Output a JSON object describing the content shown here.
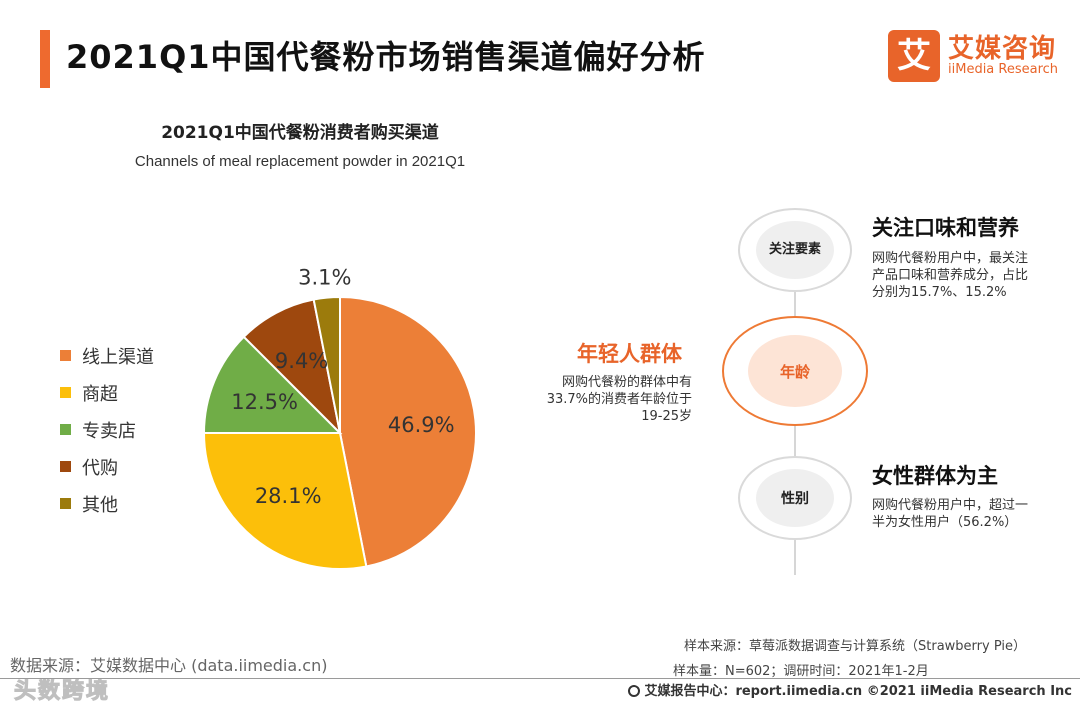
{
  "header": {
    "title": "2021Q1中国代餐粉市场销售渠道偏好分析",
    "logo_mark": "艾",
    "logo_cn": "艾媒咨询",
    "logo_en": "iiMedia Research",
    "accent_color": "#ee6a2f"
  },
  "chart_data": {
    "type": "pie",
    "title": "2021Q1中国代餐粉消费者购买渠道",
    "subtitle": "Channels of meal replacement powder in 2021Q1",
    "categories": [
      "线上渠道",
      "商超",
      "专卖店",
      "代购",
      "其他"
    ],
    "values": [
      46.9,
      28.1,
      12.5,
      9.4,
      3.1
    ],
    "labels": [
      "46.9%",
      "28.1%",
      "12.5%",
      "9.4%",
      "3.1%"
    ],
    "colors": [
      "#ec7f37",
      "#fcbf0a",
      "#70ad47",
      "#9e480e",
      "#9c7b0c"
    ],
    "legend_position": "left"
  },
  "insights": {
    "node_focus": "关注要素",
    "node_age": "年龄",
    "node_gender": "性别",
    "focus_head": "关注口味和营养",
    "focus_text": "网购代餐粉用户中，最关注产品口味和营养成分，占比分别为15.7%、15.2%",
    "age_head": "年轻人群体",
    "age_text": "网购代餐粉的群体中有33.7%的消费者年龄位于19-25岁",
    "gender_head": "女性群体为主",
    "gender_text": "网购代餐粉用户中，超过一半为女性用户（56.2%）"
  },
  "footer": {
    "data_source": "数据来源：艾媒数据中心 (data.iimedia.cn)",
    "watermark": "头数跨境",
    "sample_source": "样本来源：草莓派数据调查与计算系统（Strawberry Pie）",
    "sample_size": "样本量：N=602；调研时间：2021年1-2月",
    "report_center": "艾媒报告中心：report.iimedia.cn  ©2021  iiMedia Research  Inc"
  }
}
